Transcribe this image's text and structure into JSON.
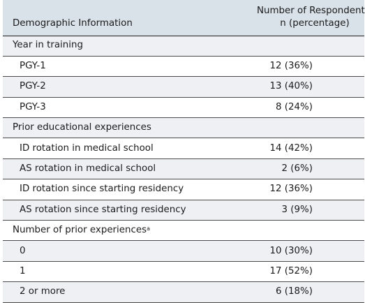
{
  "header": {
    "col1": "Demographic Information",
    "col2_line1": "Number of Respondents,",
    "col2_line2": "n (percentage)"
  },
  "sections": [
    {
      "label": "Year in training",
      "label_sup": "",
      "rows": [
        {
          "label": "PGY-1",
          "value": "12 (36%)"
        },
        {
          "label": "PGY-2",
          "value": "13 (40%)"
        },
        {
          "label": "PGY-3",
          "value": "8 (24%)"
        }
      ]
    },
    {
      "label": "Prior educational experiences",
      "label_sup": "",
      "rows": [
        {
          "label": "ID rotation in medical school",
          "value": "14 (42%)"
        },
        {
          "label": "AS rotation in medical school",
          "value": "2 (6%)"
        },
        {
          "label": "ID rotation since starting residency",
          "value": "12 (36%)"
        },
        {
          "label": "AS rotation since starting residency",
          "value": "3 (9%)"
        }
      ]
    },
    {
      "label": "Number of prior experiences",
      "label_sup": "a",
      "rows": [
        {
          "label": "0",
          "value": "10 (30%)"
        },
        {
          "label": "1",
          "value": "17 (52%)"
        },
        {
          "label": "2 or more",
          "value": "6 (18%)"
        }
      ]
    }
  ],
  "colors": {
    "header_bg": "#d9e1e9",
    "shaded_row_bg": "#eef0f3",
    "rule": "#4a4a4a"
  }
}
